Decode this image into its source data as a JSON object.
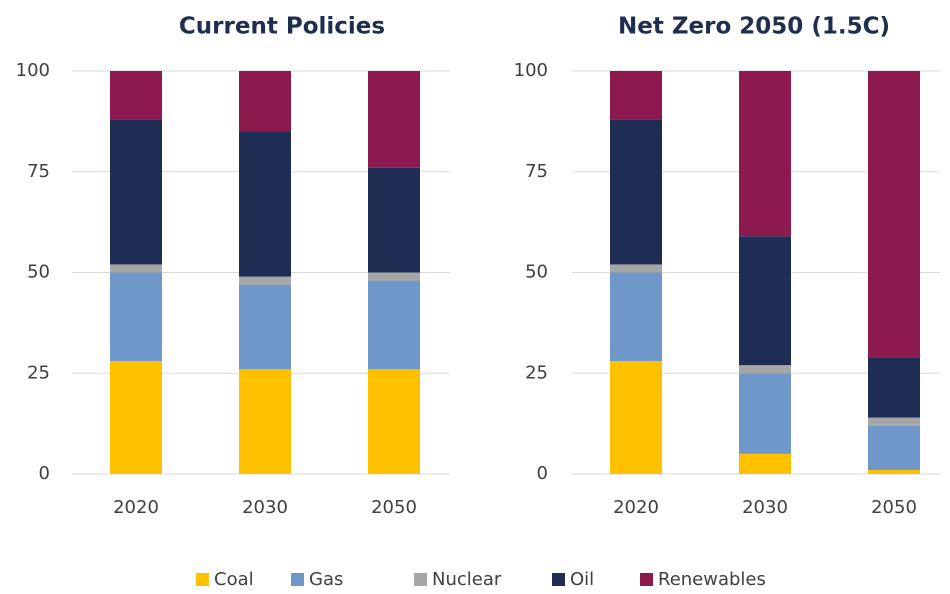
{
  "chart_data": [
    {
      "type": "stacked_bar",
      "title": "Current Policies",
      "categories": [
        "2020",
        "2030",
        "2050"
      ],
      "series": [
        {
          "name": "Coal",
          "color": "#ffc000",
          "values": [
            28,
            26,
            26
          ]
        },
        {
          "name": "Gas",
          "color": "#7097c9",
          "values": [
            22,
            21,
            22
          ]
        },
        {
          "name": "Nuclear",
          "color": "#a6a6a6",
          "values": [
            2,
            2,
            2
          ]
        },
        {
          "name": "Oil",
          "color": "#1f2d54",
          "values": [
            36,
            36,
            26
          ]
        },
        {
          "name": "Renewables",
          "color": "#8c1a4f",
          "values": [
            12,
            15,
            24
          ]
        }
      ],
      "ylim": [
        0,
        100
      ],
      "yticks": [
        0,
        25,
        50,
        75,
        100
      ],
      "grid": true
    },
    {
      "type": "stacked_bar",
      "title": "Net Zero 2050 (1.5C)",
      "categories": [
        "2020",
        "2030",
        "2050"
      ],
      "series": [
        {
          "color": "#ffc000",
          "values": [
            28,
            5,
            1
          ]
        },
        {
          "color": "#7097c9",
          "values": [
            22,
            20,
            11
          ]
        },
        {
          "color": "#a6a6a6",
          "values": [
            2,
            2,
            2
          ]
        },
        {
          "color": "#1f2d54",
          "values": [
            36,
            32,
            15
          ]
        },
        {
          "color": "#8c1a4f",
          "values": [
            12,
            41,
            71
          ]
        }
      ],
      "ylim": [
        0,
        100
      ],
      "yticks": [
        0,
        25,
        50,
        75,
        100
      ],
      "grid": true
    }
  ]
}
